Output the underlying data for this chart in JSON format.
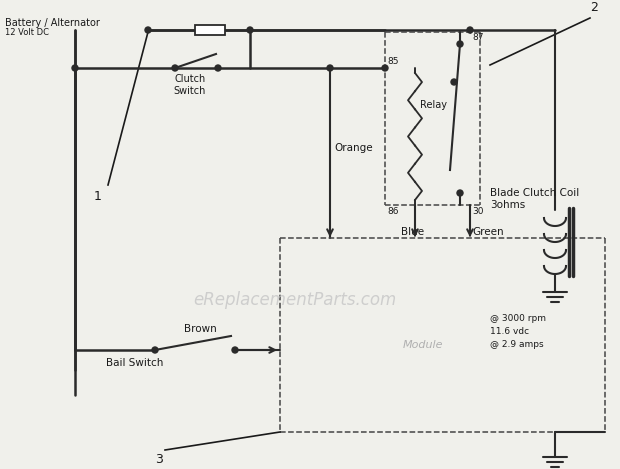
{
  "bg_color": "#f0f0eb",
  "line_color": "#2a2a2a",
  "dashed_color": "#444444",
  "text_color": "#1a1a1a",
  "watermark": "eReplacementParts.com",
  "watermark_color": "#c8c8c8",
  "labels": {
    "battery": "Battery / Alternator",
    "battery_sub": "12 Volt DC",
    "clutch_switch": "Clutch\nSwitch",
    "orange": "Orange",
    "blue": "Blue",
    "green": "Green",
    "brown": "Brown",
    "bail_switch": "Bail Switch",
    "relay": "Relay",
    "blade_coil": "Blade Clutch Coil\n3ohms",
    "module": "Module",
    "num85": "85",
    "num86": "86",
    "num87": "87",
    "num30": "30",
    "num1": "1",
    "num2": "2",
    "num3": "3",
    "rpm": "@ 3000 rpm",
    "vdc": "11.6 vdc",
    "amps": "@ 2.9 amps"
  }
}
